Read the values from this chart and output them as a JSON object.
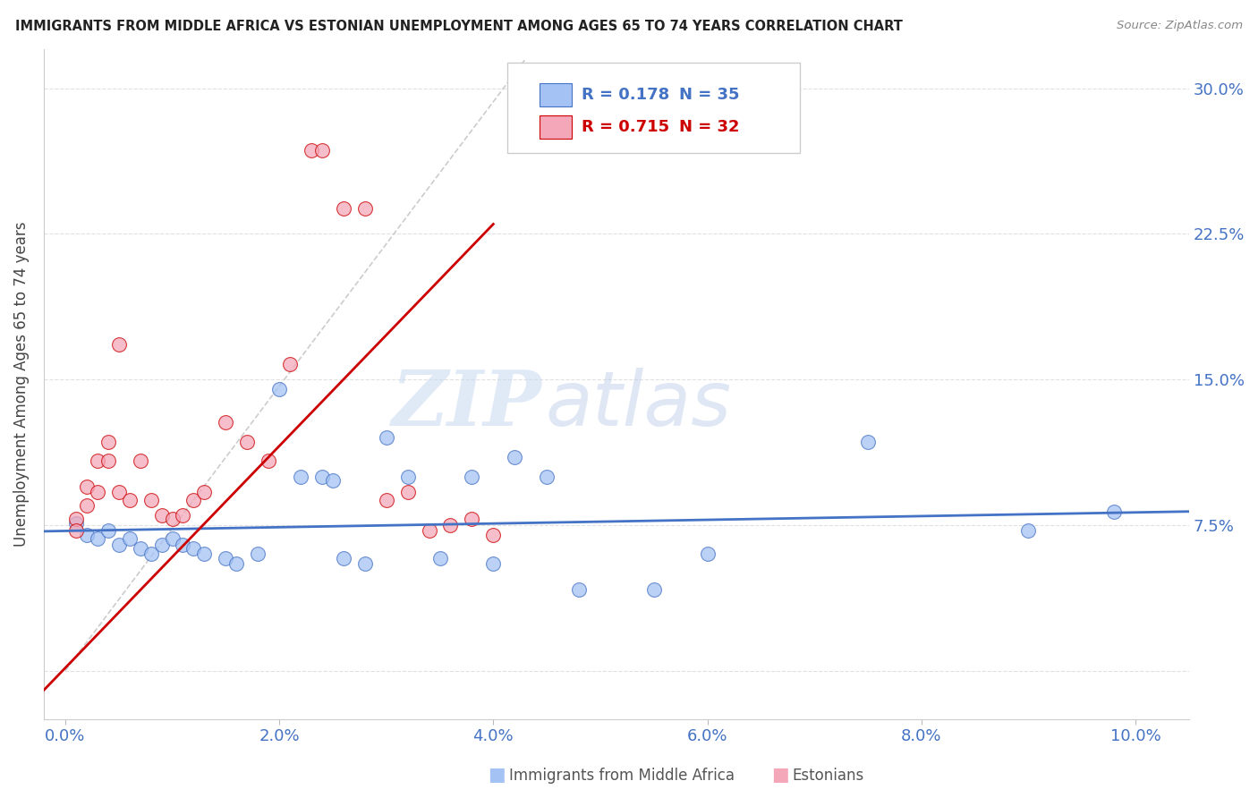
{
  "title": "IMMIGRANTS FROM MIDDLE AFRICA VS ESTONIAN UNEMPLOYMENT AMONG AGES 65 TO 74 YEARS CORRELATION CHART",
  "source": "Source: ZipAtlas.com",
  "ylabel": "Unemployment Among Ages 65 to 74 years",
  "y_ticks": [
    0.0,
    0.075,
    0.15,
    0.225,
    0.3
  ],
  "y_tick_labels": [
    "",
    "7.5%",
    "15.0%",
    "22.5%",
    "30.0%"
  ],
  "x_ticks": [
    0.0,
    0.02,
    0.04,
    0.06,
    0.08,
    0.1
  ],
  "x_tick_labels": [
    "0.0%",
    "2.0%",
    "4.0%",
    "6.0%",
    "8.0%",
    "10.0%"
  ],
  "xlim": [
    -0.002,
    0.105
  ],
  "ylim": [
    -0.025,
    0.32
  ],
  "legend_r1": "0.178",
  "legend_n1": "35",
  "legend_r2": "0.715",
  "legend_n2": "32",
  "color_blue": "#a4c2f4",
  "color_pink": "#f4a7b9",
  "color_blue_line": "#4472c4",
  "color_pink_line": "#cc0000",
  "color_dashed_line": "#cccccc",
  "color_axis_labels": "#4472c4",
  "watermark_zip": "ZIP",
  "watermark_atlas": "atlas",
  "blue_scatter_x": [
    0.001,
    0.002,
    0.003,
    0.004,
    0.005,
    0.006,
    0.007,
    0.008,
    0.009,
    0.01,
    0.011,
    0.012,
    0.013,
    0.015,
    0.016,
    0.018,
    0.02,
    0.022,
    0.024,
    0.025,
    0.026,
    0.028,
    0.03,
    0.032,
    0.035,
    0.038,
    0.04,
    0.042,
    0.045,
    0.048,
    0.055,
    0.06,
    0.075,
    0.09,
    0.098
  ],
  "blue_scatter_y": [
    0.076,
    0.07,
    0.068,
    0.072,
    0.065,
    0.068,
    0.063,
    0.06,
    0.065,
    0.068,
    0.065,
    0.063,
    0.06,
    0.058,
    0.055,
    0.06,
    0.145,
    0.1,
    0.1,
    0.098,
    0.058,
    0.055,
    0.12,
    0.1,
    0.058,
    0.1,
    0.055,
    0.11,
    0.1,
    0.042,
    0.042,
    0.06,
    0.118,
    0.072,
    0.082
  ],
  "pink_scatter_x": [
    0.001,
    0.001,
    0.002,
    0.002,
    0.003,
    0.003,
    0.004,
    0.004,
    0.005,
    0.005,
    0.006,
    0.007,
    0.008,
    0.009,
    0.01,
    0.011,
    0.012,
    0.013,
    0.015,
    0.017,
    0.019,
    0.021,
    0.023,
    0.024,
    0.026,
    0.028,
    0.03,
    0.032,
    0.034,
    0.036,
    0.038,
    0.04
  ],
  "pink_scatter_y": [
    0.078,
    0.072,
    0.095,
    0.085,
    0.108,
    0.092,
    0.118,
    0.108,
    0.168,
    0.092,
    0.088,
    0.108,
    0.088,
    0.08,
    0.078,
    0.08,
    0.088,
    0.092,
    0.128,
    0.118,
    0.108,
    0.158,
    0.268,
    0.268,
    0.238,
    0.238,
    0.088,
    0.092,
    0.072,
    0.075,
    0.078,
    0.07
  ],
  "grid_color": "#e0e0e0",
  "blue_line_x": [
    -0.002,
    0.105
  ],
  "blue_line_y": [
    0.0718,
    0.082
  ],
  "pink_line_x": [
    -0.002,
    0.04
  ],
  "pink_line_y": [
    -0.01,
    0.23
  ]
}
